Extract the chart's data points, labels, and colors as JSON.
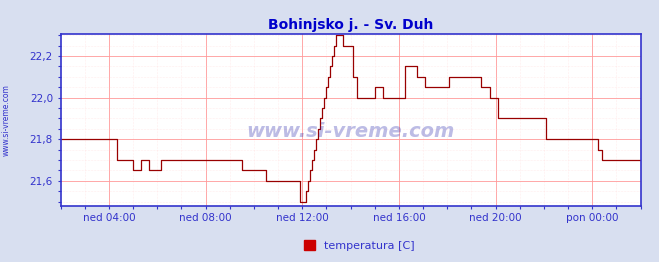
{
  "title": "Bohinjsko j. - Sv. Duh",
  "title_color": "#0000cc",
  "title_fontsize": 10,
  "bg_color": "#d8dff0",
  "plot_bg_color": "#ffffff",
  "line_color": "#990000",
  "axis_color": "#3333cc",
  "grid_major_color": "#ff9999",
  "grid_minor_color": "#ffdddd",
  "tick_label_color": "#3333cc",
  "watermark": "www.si-vreme.com",
  "watermark_color": "#2222aa",
  "legend_label": "temperatura [C]",
  "legend_color": "#cc0000",
  "sidebar_label": "www.si-vreme.com",
  "ylim": [
    21.48,
    22.305
  ],
  "yticks": [
    21.6,
    21.8,
    22.0,
    22.2
  ],
  "ytick_labels": [
    "21,6",
    "21,8",
    "22,0",
    "22,2"
  ],
  "xlim": [
    0,
    288
  ],
  "xtick_positions": [
    24,
    72,
    120,
    168,
    216,
    264
  ],
  "xtick_labels": [
    "ned 04:00",
    "ned 08:00",
    "ned 12:00",
    "ned 16:00",
    "ned 20:00",
    "pon 00:00"
  ],
  "data_x": [
    0,
    4,
    8,
    12,
    16,
    20,
    24,
    28,
    30,
    32,
    34,
    36,
    38,
    40,
    42,
    44,
    46,
    48,
    50,
    52,
    54,
    56,
    58,
    60,
    62,
    64,
    66,
    68,
    70,
    72,
    74,
    76,
    78,
    80,
    82,
    84,
    86,
    88,
    90,
    92,
    94,
    96,
    98,
    100,
    102,
    104,
    106,
    108,
    110,
    112,
    114,
    116,
    118,
    119,
    120,
    121,
    122,
    123,
    124,
    125,
    126,
    127,
    128,
    129,
    130,
    131,
    132,
    133,
    134,
    135,
    136,
    137,
    138,
    139,
    140,
    141,
    142,
    143,
    144,
    145,
    146,
    147,
    148,
    149,
    150,
    151,
    152,
    153,
    154,
    155,
    156,
    157,
    158,
    159,
    160,
    161,
    162,
    163,
    164,
    165,
    166,
    167,
    168,
    169,
    170,
    171,
    172,
    173,
    174,
    175,
    176,
    177,
    178,
    179,
    180,
    181,
    182,
    183,
    184,
    185,
    186,
    187,
    188,
    189,
    190,
    191,
    192,
    193,
    194,
    195,
    196,
    197,
    198,
    199,
    200,
    201,
    202,
    203,
    204,
    205,
    206,
    207,
    208,
    209,
    210,
    211,
    212,
    213,
    214,
    215,
    216,
    217,
    218,
    219,
    220,
    221,
    222,
    223,
    224,
    225,
    226,
    227,
    228,
    229,
    230,
    231,
    232,
    233,
    234,
    235,
    236,
    237,
    238,
    239,
    240,
    241,
    242,
    243,
    244,
    245,
    246,
    247,
    248,
    249,
    250,
    251,
    252,
    253,
    254,
    255,
    256,
    257,
    258,
    259,
    260,
    261,
    262,
    263,
    264,
    265,
    266,
    267,
    268,
    269,
    270,
    271,
    272,
    273,
    274,
    275,
    276,
    277,
    278,
    279,
    280,
    281,
    282,
    283,
    284,
    285,
    286,
    287,
    288
  ],
  "data_y": [
    21.8,
    21.8,
    21.8,
    21.8,
    21.8,
    21.8,
    21.8,
    21.7,
    21.7,
    21.7,
    21.7,
    21.65,
    21.65,
    21.7,
    21.7,
    21.65,
    21.65,
    21.65,
    21.7,
    21.7,
    21.7,
    21.7,
    21.7,
    21.7,
    21.7,
    21.7,
    21.7,
    21.7,
    21.7,
    21.7,
    21.7,
    21.7,
    21.7,
    21.7,
    21.7,
    21.7,
    21.7,
    21.7,
    21.65,
    21.65,
    21.65,
    21.65,
    21.65,
    21.65,
    21.6,
    21.6,
    21.6,
    21.6,
    21.6,
    21.6,
    21.6,
    21.6,
    21.6,
    21.5,
    21.5,
    21.5,
    21.55,
    21.6,
    21.65,
    21.7,
    21.75,
    21.8,
    21.85,
    21.9,
    21.95,
    22.0,
    22.05,
    22.1,
    22.15,
    22.2,
    22.25,
    22.3,
    22.3,
    22.3,
    22.25,
    22.25,
    22.25,
    22.25,
    22.25,
    22.1,
    22.1,
    22.0,
    22.0,
    22.0,
    22.0,
    22.0,
    22.0,
    22.0,
    22.0,
    22.0,
    22.05,
    22.05,
    22.05,
    22.05,
    22.0,
    22.0,
    22.0,
    22.0,
    22.0,
    22.0,
    22.0,
    22.0,
    22.0,
    22.0,
    22.0,
    22.15,
    22.15,
    22.15,
    22.15,
    22.15,
    22.15,
    22.1,
    22.1,
    22.1,
    22.1,
    22.05,
    22.05,
    22.05,
    22.05,
    22.05,
    22.05,
    22.05,
    22.05,
    22.05,
    22.05,
    22.05,
    22.05,
    22.1,
    22.1,
    22.1,
    22.1,
    22.1,
    22.1,
    22.1,
    22.1,
    22.1,
    22.1,
    22.1,
    22.1,
    22.1,
    22.1,
    22.1,
    22.1,
    22.05,
    22.05,
    22.05,
    22.05,
    22.0,
    22.0,
    22.0,
    22.0,
    21.9,
    21.9,
    21.9,
    21.9,
    21.9,
    21.9,
    21.9,
    21.9,
    21.9,
    21.9,
    21.9,
    21.9,
    21.9,
    21.9,
    21.9,
    21.9,
    21.9,
    21.9,
    21.9,
    21.9,
    21.9,
    21.9,
    21.9,
    21.9,
    21.8,
    21.8,
    21.8,
    21.8,
    21.8,
    21.8,
    21.8,
    21.8,
    21.8,
    21.8,
    21.8,
    21.8,
    21.8,
    21.8,
    21.8,
    21.8,
    21.8,
    21.8,
    21.8,
    21.8,
    21.8,
    21.8,
    21.8,
    21.8,
    21.8,
    21.8,
    21.75,
    21.75,
    21.7,
    21.7,
    21.7,
    21.7,
    21.7,
    21.7,
    21.7,
    21.7,
    21.7,
    21.7,
    21.7,
    21.7,
    21.7,
    21.7,
    21.7,
    21.7,
    21.7,
    21.7,
    21.7,
    21.7
  ]
}
